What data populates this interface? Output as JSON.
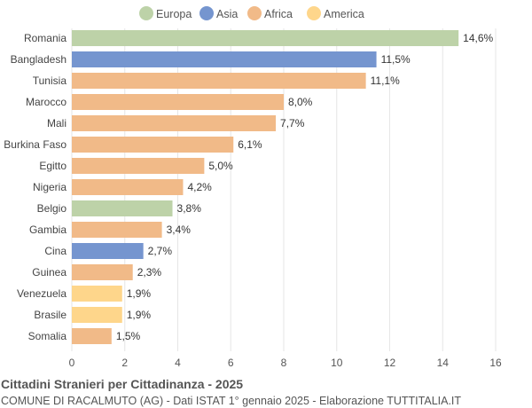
{
  "chart_data": {
    "type": "bar",
    "orientation": "horizontal",
    "title": "Cittadini Stranieri per Cittadinanza - 2025",
    "subtitle": "COMUNE DI RACALMUTO (AG) - Dati ISTAT 1° gennaio 2025 - Elaborazione TUTTITALIA.IT",
    "legend": {
      "position": "top",
      "entries": [
        {
          "name": "Europa",
          "color": "#bdd2a8"
        },
        {
          "name": "Asia",
          "color": "#7595cf"
        },
        {
          "name": "Africa",
          "color": "#f1ba88"
        },
        {
          "name": "America",
          "color": "#fed68b"
        }
      ]
    },
    "categories": [
      "Romania",
      "Bangladesh",
      "Tunisia",
      "Marocco",
      "Mali",
      "Burkina Faso",
      "Egitto",
      "Nigeria",
      "Belgio",
      "Gambia",
      "Cina",
      "Guinea",
      "Venezuela",
      "Brasile",
      "Somalia"
    ],
    "values": [
      14.6,
      11.5,
      11.1,
      8.0,
      7.7,
      6.1,
      5.0,
      4.2,
      3.8,
      3.4,
      2.7,
      2.3,
      1.9,
      1.9,
      1.5
    ],
    "labels": [
      "14,6%",
      "11,5%",
      "11,1%",
      "8,0%",
      "7,7%",
      "6,1%",
      "5,0%",
      "4,2%",
      "3,8%",
      "3,4%",
      "2,7%",
      "2,3%",
      "1,9%",
      "1,9%",
      "1,5%"
    ],
    "groups": [
      "Europa",
      "Asia",
      "Africa",
      "Africa",
      "Africa",
      "Africa",
      "Africa",
      "Africa",
      "Europa",
      "Africa",
      "Asia",
      "Africa",
      "America",
      "America",
      "Africa"
    ],
    "xlim": [
      0,
      16
    ],
    "xticks": [
      0,
      2,
      4,
      6,
      8,
      10,
      12,
      14,
      16
    ],
    "grid": true,
    "xlabel": "",
    "ylabel": ""
  }
}
